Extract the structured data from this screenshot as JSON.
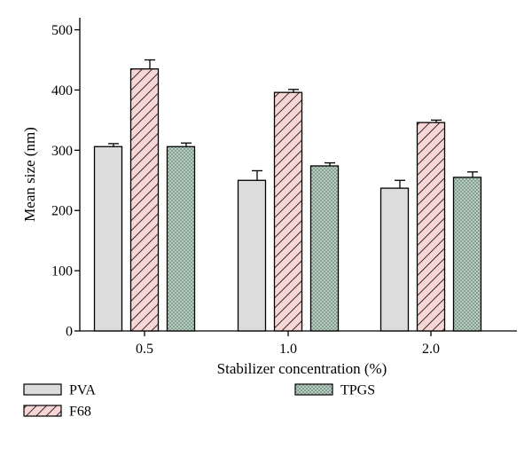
{
  "chart_data": {
    "type": "bar",
    "title": "",
    "xlabel": "Stabilizer concentration (%)",
    "ylabel": "Mean size (nm)",
    "categories": [
      "0.5",
      "1.0",
      "2.0"
    ],
    "ylim": [
      0,
      520
    ],
    "yticks": [
      "0",
      "100",
      "200",
      "300",
      "400",
      "500"
    ],
    "grid": false,
    "legend_position": "bottom",
    "series": [
      {
        "name": "PVA",
        "values": [
          306,
          250,
          237
        ],
        "errors": [
          5,
          16,
          13
        ],
        "fill": "#dcdcdc",
        "pattern": "solid"
      },
      {
        "name": "F68",
        "values": [
          435,
          396,
          346
        ],
        "errors": [
          15,
          5,
          4
        ],
        "fill": "#f9d6d6",
        "pattern": "diagonal-hatch"
      },
      {
        "name": "TPGS",
        "values": [
          306,
          274,
          255
        ],
        "errors": [
          6,
          5,
          9
        ],
        "fill": "#c2d8cc",
        "pattern": "crosshatch"
      }
    ]
  }
}
